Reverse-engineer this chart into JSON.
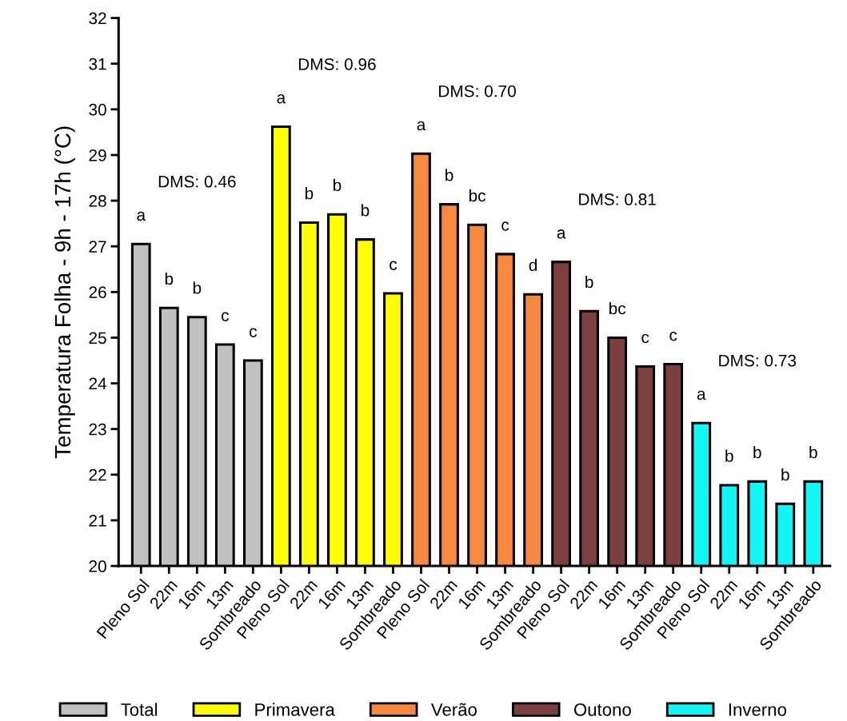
{
  "chart_data": {
    "type": "bar",
    "ylabel": "Temperatura Folha - 9h - 17h (°C)",
    "categories": [
      "Pleno Sol",
      "22m",
      "16m",
      "13m",
      "Sombreado",
      "Pleno Sol",
      "22m",
      "16m",
      "13m",
      "Sombreado",
      "Pleno Sol",
      "22m",
      "16m",
      "13m",
      "Sombreado",
      "Pleno Sol",
      "22m",
      "16m",
      "13m",
      "Sombreado",
      "Pleno Sol",
      "22m",
      "16m",
      "13m",
      "Sombreado"
    ],
    "series": [
      {
        "name": "Total",
        "color": "#c0c0c0",
        "values": [
          27.05,
          25.65,
          25.45,
          24.85,
          24.5,
          null,
          null,
          null,
          null,
          null,
          null,
          null,
          null,
          null,
          null,
          null,
          null,
          null,
          null,
          null,
          null,
          null,
          null,
          null,
          null
        ],
        "value_labels": [
          "a",
          "b",
          "b",
          "c",
          "c",
          null,
          null,
          null,
          null,
          null,
          null,
          null,
          null,
          null,
          null,
          null,
          null,
          null,
          null,
          null,
          null,
          null,
          null,
          null,
          null
        ]
      },
      {
        "name": "Primavera",
        "color": "#ffff00",
        "values": [
          null,
          null,
          null,
          null,
          null,
          29.62,
          27.52,
          27.7,
          27.15,
          25.97,
          null,
          null,
          null,
          null,
          null,
          null,
          null,
          null,
          null,
          null,
          null,
          null,
          null,
          null,
          null
        ],
        "value_labels": [
          null,
          null,
          null,
          null,
          null,
          "a",
          "b",
          "b",
          "b",
          "c",
          null,
          null,
          null,
          null,
          null,
          null,
          null,
          null,
          null,
          null,
          null,
          null,
          null,
          null,
          null
        ]
      },
      {
        "name": "Verão",
        "color": "#f7883f",
        "values": [
          null,
          null,
          null,
          null,
          null,
          null,
          null,
          null,
          null,
          null,
          29.03,
          27.92,
          27.47,
          26.83,
          25.95,
          null,
          null,
          null,
          null,
          null,
          null,
          null,
          null,
          null,
          null
        ],
        "value_labels": [
          null,
          null,
          null,
          null,
          null,
          null,
          null,
          null,
          null,
          null,
          "a",
          "b",
          "bc",
          "c",
          "d",
          null,
          null,
          null,
          null,
          null,
          null,
          null,
          null,
          null,
          null
        ]
      },
      {
        "name": "Outono",
        "color": "#7b3f3f",
        "values": [
          null,
          null,
          null,
          null,
          null,
          null,
          null,
          null,
          null,
          null,
          null,
          null,
          null,
          null,
          null,
          26.66,
          25.58,
          25.0,
          24.37,
          24.42,
          null,
          null,
          null,
          null,
          null
        ],
        "value_labels": [
          null,
          null,
          null,
          null,
          null,
          null,
          null,
          null,
          null,
          null,
          null,
          null,
          null,
          null,
          null,
          "a",
          "b",
          "bc",
          "c",
          "c",
          null,
          null,
          null,
          null,
          null
        ]
      },
      {
        "name": "Inverno",
        "color": "#12f5f5",
        "values": [
          null,
          null,
          null,
          null,
          null,
          null,
          null,
          null,
          null,
          null,
          null,
          null,
          null,
          null,
          null,
          null,
          null,
          null,
          null,
          null,
          23.13,
          21.77,
          21.85,
          21.36,
          21.85
        ],
        "value_labels": [
          null,
          null,
          null,
          null,
          null,
          null,
          null,
          null,
          null,
          null,
          null,
          null,
          null,
          null,
          null,
          null,
          null,
          null,
          null,
          null,
          "a",
          "b",
          "b",
          "b",
          "b"
        ]
      }
    ],
    "annotations": [
      "DMS: 0.46",
      "DMS: 0.96",
      "DMS: 0.70",
      "DMS: 0.81",
      "DMS: 0.73"
    ],
    "ylim": [
      20,
      32
    ],
    "yticks": [
      20,
      21,
      22,
      23,
      24,
      25,
      26,
      27,
      28,
      29,
      30,
      31,
      32
    ],
    "legend": "bottom",
    "grid": false
  }
}
